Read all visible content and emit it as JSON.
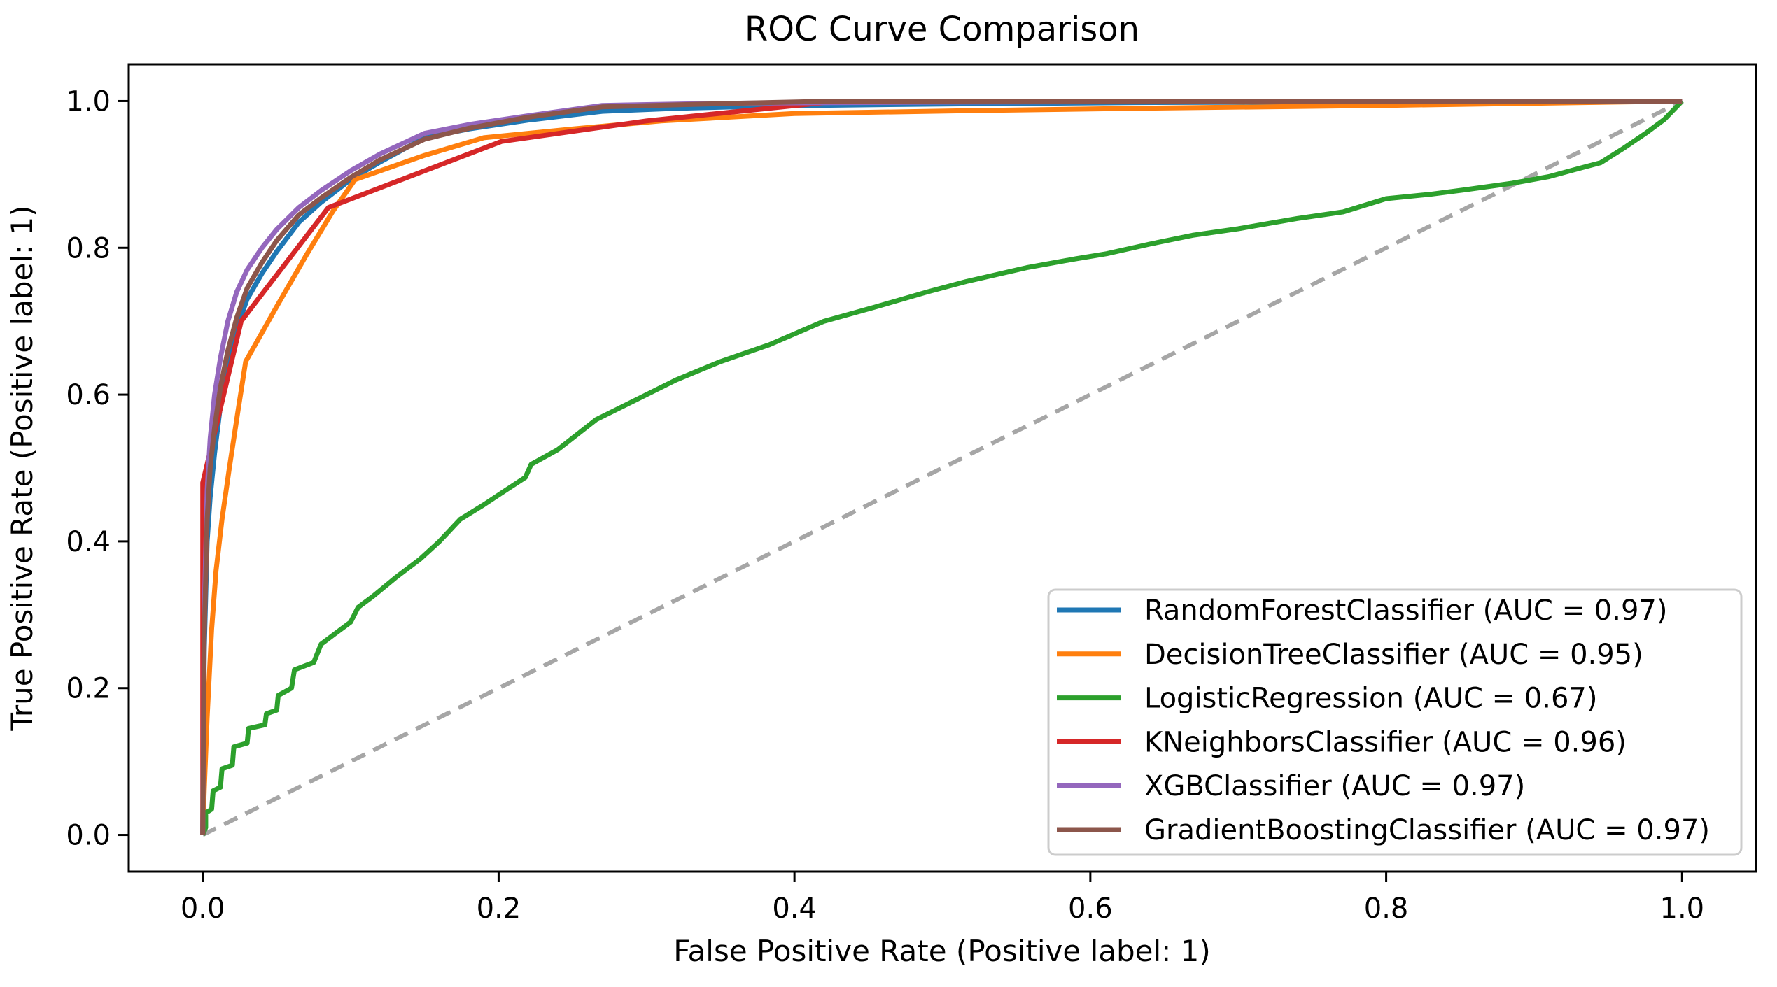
{
  "title": "ROC Curve Comparison",
  "axes": {
    "xlabel": "False Positive Rate (Positive label: 1)",
    "ylabel": "True Positive Rate (Positive label: 1)",
    "xticks": [
      "0.0",
      "0.2",
      "0.4",
      "0.6",
      "0.8",
      "1.0"
    ],
    "yticks": [
      "0.0",
      "0.2",
      "0.4",
      "0.6",
      "0.8",
      "1.0"
    ]
  },
  "colors": {
    "spine": "#000000",
    "text": "#000000",
    "diagonal": "#a6a6a6",
    "legend_border": "#cccccc",
    "legend_bg": "#ffffff"
  },
  "chart_data": {
    "type": "line",
    "title": "ROC Curve Comparison",
    "xlabel": "False Positive Rate (Positive label: 1)",
    "ylabel": "True Positive Rate (Positive label: 1)",
    "xlim": [
      -0.05,
      1.05
    ],
    "ylim": [
      -0.05,
      1.05
    ],
    "grid": false,
    "legend_position": "lower right",
    "diagonal": {
      "style": "dashed",
      "color": "#a6a6a6",
      "points": [
        [
          0,
          0
        ],
        [
          1,
          1
        ]
      ]
    },
    "series": [
      {
        "name": "RandomForestClassifier",
        "auc": 0.97,
        "label": "RandomForestClassifier (AUC = 0.97)",
        "color": "#1f77b4",
        "points": [
          [
            0,
            0
          ],
          [
            0.001,
            0.25
          ],
          [
            0.003,
            0.4
          ],
          [
            0.005,
            0.46
          ],
          [
            0.008,
            0.52
          ],
          [
            0.012,
            0.585
          ],
          [
            0.017,
            0.64
          ],
          [
            0.023,
            0.69
          ],
          [
            0.03,
            0.73
          ],
          [
            0.04,
            0.765
          ],
          [
            0.05,
            0.795
          ],
          [
            0.065,
            0.835
          ],
          [
            0.08,
            0.862
          ],
          [
            0.1,
            0.893
          ],
          [
            0.12,
            0.917
          ],
          [
            0.15,
            0.95
          ],
          [
            0.18,
            0.962
          ],
          [
            0.22,
            0.974
          ],
          [
            0.27,
            0.986
          ],
          [
            0.32,
            0.99
          ],
          [
            0.39,
            0.9935
          ],
          [
            0.5,
            0.996
          ],
          [
            0.63,
            0.998
          ],
          [
            0.8,
            0.999
          ],
          [
            1,
            1
          ]
        ]
      },
      {
        "name": "DecisionTreeClassifier",
        "auc": 0.95,
        "label": "DecisionTreeClassifier (AUC = 0.95)",
        "color": "#ff7f0e",
        "points": [
          [
            0,
            0
          ],
          [
            0.001,
            0.06
          ],
          [
            0.003,
            0.16
          ],
          [
            0.006,
            0.28
          ],
          [
            0.009,
            0.36
          ],
          [
            0.013,
            0.43
          ],
          [
            0.018,
            0.5
          ],
          [
            0.024,
            0.58
          ],
          [
            0.029,
            0.645
          ],
          [
            0.05,
            0.72
          ],
          [
            0.07,
            0.79
          ],
          [
            0.088,
            0.85
          ],
          [
            0.103,
            0.893
          ],
          [
            0.15,
            0.926
          ],
          [
            0.19,
            0.95
          ],
          [
            0.25,
            0.962
          ],
          [
            0.31,
            0.973
          ],
          [
            0.4,
            0.983
          ],
          [
            0.52,
            0.987
          ],
          [
            0.63,
            0.99
          ],
          [
            0.8,
            0.994
          ],
          [
            1,
            1
          ]
        ]
      },
      {
        "name": "LogisticRegression",
        "auc": 0.67,
        "label": "LogisticRegression (AUC = 0.67)",
        "color": "#2ca02c",
        "points": [
          [
            0,
            0
          ],
          [
            0.002,
            0.01
          ],
          [
            0.002,
            0.03
          ],
          [
            0.006,
            0.035
          ],
          [
            0.007,
            0.06
          ],
          [
            0.012,
            0.065
          ],
          [
            0.013,
            0.09
          ],
          [
            0.02,
            0.095
          ],
          [
            0.021,
            0.12
          ],
          [
            0.03,
            0.125
          ],
          [
            0.031,
            0.145
          ],
          [
            0.042,
            0.15
          ],
          [
            0.043,
            0.165
          ],
          [
            0.05,
            0.17
          ],
          [
            0.051,
            0.19
          ],
          [
            0.06,
            0.2
          ],
          [
            0.062,
            0.225
          ],
          [
            0.075,
            0.235
          ],
          [
            0.08,
            0.26
          ],
          [
            0.09,
            0.275
          ],
          [
            0.1,
            0.29
          ],
          [
            0.105,
            0.31
          ],
          [
            0.115,
            0.325
          ],
          [
            0.13,
            0.35
          ],
          [
            0.147,
            0.376
          ],
          [
            0.16,
            0.4
          ],
          [
            0.174,
            0.43
          ],
          [
            0.19,
            0.45
          ],
          [
            0.205,
            0.47
          ],
          [
            0.218,
            0.487
          ],
          [
            0.222,
            0.505
          ],
          [
            0.24,
            0.525
          ],
          [
            0.266,
            0.566
          ],
          [
            0.29,
            0.59
          ],
          [
            0.32,
            0.62
          ],
          [
            0.35,
            0.645
          ],
          [
            0.383,
            0.668
          ],
          [
            0.42,
            0.7
          ],
          [
            0.454,
            0.719
          ],
          [
            0.49,
            0.74
          ],
          [
            0.516,
            0.754
          ],
          [
            0.557,
            0.773
          ],
          [
            0.59,
            0.785
          ],
          [
            0.611,
            0.792
          ],
          [
            0.64,
            0.805
          ],
          [
            0.669,
            0.817
          ],
          [
            0.7,
            0.826
          ],
          [
            0.74,
            0.84
          ],
          [
            0.771,
            0.849
          ],
          [
            0.8,
            0.867
          ],
          [
            0.83,
            0.873
          ],
          [
            0.853,
            0.879
          ],
          [
            0.885,
            0.888
          ],
          [
            0.91,
            0.897
          ],
          [
            0.93,
            0.908
          ],
          [
            0.945,
            0.916
          ],
          [
            0.96,
            0.935
          ],
          [
            0.976,
            0.957
          ],
          [
            0.988,
            0.975
          ],
          [
            1,
            1
          ]
        ]
      },
      {
        "name": "KNeighborsClassifier",
        "auc": 0.96,
        "label": "KNeighborsClassifier (AUC = 0.96)",
        "color": "#d62728",
        "points": [
          [
            0,
            0
          ],
          [
            0,
            0.48
          ],
          [
            0.026,
            0.7
          ],
          [
            0.085,
            0.855
          ],
          [
            0.202,
            0.945
          ],
          [
            0.3,
            0.973
          ],
          [
            0.43,
            1.0
          ],
          [
            1,
            1
          ]
        ]
      },
      {
        "name": "XGBClassifier",
        "auc": 0.97,
        "label": "XGBClassifier (AUC = 0.97)",
        "color": "#9467bd",
        "points": [
          [
            0,
            0
          ],
          [
            0.001,
            0.3
          ],
          [
            0.003,
            0.47
          ],
          [
            0.005,
            0.54
          ],
          [
            0.008,
            0.6
          ],
          [
            0.012,
            0.65
          ],
          [
            0.017,
            0.7
          ],
          [
            0.023,
            0.74
          ],
          [
            0.03,
            0.77
          ],
          [
            0.04,
            0.8
          ],
          [
            0.05,
            0.825
          ],
          [
            0.065,
            0.855
          ],
          [
            0.08,
            0.878
          ],
          [
            0.1,
            0.905
          ],
          [
            0.12,
            0.928
          ],
          [
            0.15,
            0.956
          ],
          [
            0.18,
            0.968
          ],
          [
            0.22,
            0.98
          ],
          [
            0.27,
            0.994
          ],
          [
            0.35,
            0.997
          ],
          [
            0.5,
            0.9985
          ],
          [
            0.7,
            0.9995
          ],
          [
            1,
            1
          ]
        ]
      },
      {
        "name": "GradientBoostingClassifier",
        "auc": 0.97,
        "label": "GradientBoostingClassifier (AUC = 0.97)",
        "color": "#8c564b",
        "points": [
          [
            0,
            0
          ],
          [
            0.001,
            0.27
          ],
          [
            0.003,
            0.43
          ],
          [
            0.005,
            0.5
          ],
          [
            0.008,
            0.555
          ],
          [
            0.012,
            0.61
          ],
          [
            0.017,
            0.66
          ],
          [
            0.023,
            0.705
          ],
          [
            0.03,
            0.745
          ],
          [
            0.04,
            0.78
          ],
          [
            0.05,
            0.81
          ],
          [
            0.065,
            0.845
          ],
          [
            0.08,
            0.868
          ],
          [
            0.1,
            0.896
          ],
          [
            0.12,
            0.92
          ],
          [
            0.15,
            0.948
          ],
          [
            0.18,
            0.963
          ],
          [
            0.22,
            0.978
          ],
          [
            0.27,
            0.992
          ],
          [
            0.35,
            0.9965
          ],
          [
            0.43,
            1.0
          ],
          [
            1,
            1
          ]
        ]
      }
    ]
  }
}
